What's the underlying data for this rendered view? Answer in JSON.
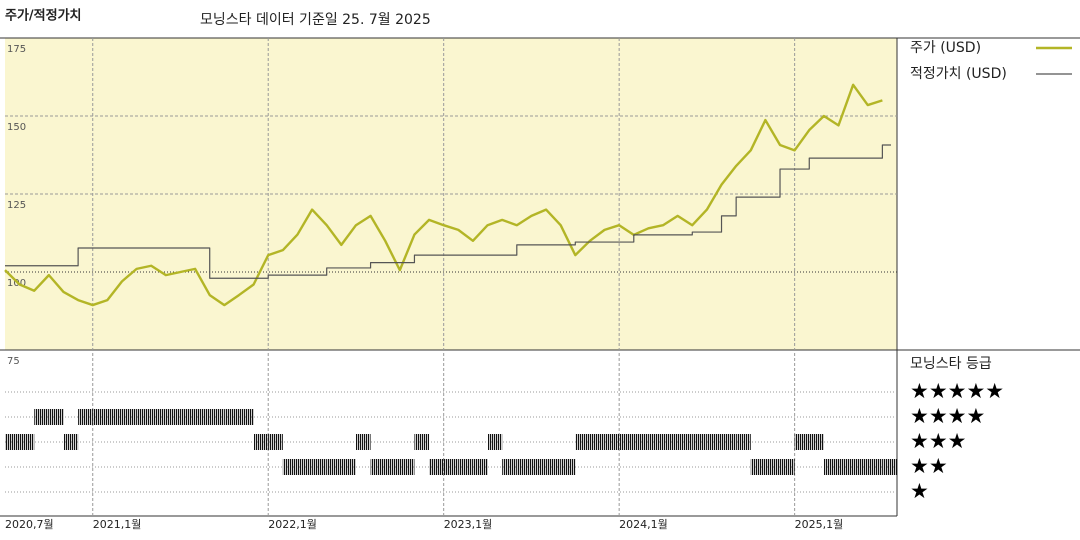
{
  "chart_data": {
    "type": "line",
    "title": "주가/적정가치",
    "subtitle": "모닝스타 데이터 기준일 25. 7월 2025",
    "x": [
      "2020-07",
      "2020-08",
      "2020-09",
      "2020-10",
      "2020-11",
      "2020-12",
      "2021-01",
      "2021-02",
      "2021-03",
      "2021-04",
      "2021-05",
      "2021-06",
      "2021-07",
      "2021-08",
      "2021-09",
      "2021-10",
      "2021-11",
      "2021-12",
      "2022-01",
      "2022-02",
      "2022-03",
      "2022-04",
      "2022-05",
      "2022-06",
      "2022-07",
      "2022-08",
      "2022-09",
      "2022-10",
      "2022-11",
      "2022-12",
      "2023-01",
      "2023-02",
      "2023-03",
      "2023-04",
      "2023-05",
      "2023-06",
      "2023-07",
      "2023-08",
      "2023-09",
      "2023-10",
      "2023-11",
      "2023-12",
      "2024-01",
      "2024-02",
      "2024-03",
      "2024-04",
      "2024-05",
      "2024-06",
      "2024-07",
      "2024-08",
      "2024-09",
      "2024-10",
      "2024-11",
      "2024-12",
      "2025-01",
      "2025-02",
      "2025-03",
      "2025-04",
      "2025-05",
      "2025-06",
      "2025-07"
    ],
    "series": [
      {
        "name": "주가 (USD)",
        "color": "#b3b526",
        "values": [
          100.6,
          96,
          94,
          99,
          93.6,
          91,
          89.4,
          91,
          97,
          101,
          102,
          99,
          100,
          101,
          92.6,
          89.4,
          92.6,
          96,
          105.4,
          107,
          112,
          120,
          115,
          108.7,
          115,
          118,
          110,
          100.6,
          112,
          116.7,
          115,
          113.5,
          110,
          115,
          116.7,
          115,
          118,
          120,
          115,
          105.4,
          110,
          113.5,
          115,
          111.9,
          114,
          115,
          118,
          115,
          120,
          128,
          134,
          139,
          148.7,
          140.7,
          139,
          145.5,
          150,
          147,
          160,
          153.5,
          155
        ]
      },
      {
        "name": "적정가치 (USD)",
        "color": "#555555",
        "step": true,
        "values": [
          102,
          102,
          102,
          102,
          102,
          107.7,
          107.7,
          107.7,
          107.7,
          107.7,
          107.7,
          107.7,
          107.7,
          107.7,
          98,
          98,
          98,
          98,
          99,
          99,
          99,
          99,
          101.3,
          101.3,
          101.3,
          103,
          103,
          103,
          105.4,
          105.4,
          105.4,
          105.4,
          105.4,
          105.4,
          105.4,
          108.7,
          108.7,
          108.7,
          108.7,
          109.6,
          109.6,
          109.6,
          109.6,
          111.9,
          111.9,
          111.9,
          111.9,
          112.8,
          112.8,
          118,
          124,
          124,
          124,
          133,
          133,
          136.5,
          136.5,
          136.5,
          136.5,
          136.5,
          140.7
        ]
      }
    ],
    "ylim": [
      75,
      175
    ],
    "yticks": [
      75,
      100,
      125,
      150,
      175
    ],
    "reference_line": 100,
    "grid": true,
    "xticks": [
      {
        "value": "2020-07",
        "label": "2020,7월"
      },
      {
        "value": "2021-01",
        "label": "2021,1월"
      },
      {
        "value": "2022-01",
        "label": "2022,1월"
      },
      {
        "value": "2023-01",
        "label": "2023,1월"
      },
      {
        "value": "2024-01",
        "label": "2024,1월"
      },
      {
        "value": "2025-01",
        "label": "2025,1월"
      }
    ],
    "rating": {
      "title": "모닝스타 등급",
      "levels": [
        {
          "value": 5,
          "label": "★★★★★"
        },
        {
          "value": 4,
          "label": "★★★★"
        },
        {
          "value": 3,
          "label": "★★★"
        },
        {
          "value": 2,
          "label": "★★"
        },
        {
          "value": 1,
          "label": "★"
        }
      ],
      "values": [
        3,
        3,
        4,
        4,
        3,
        4,
        4,
        4,
        4,
        4,
        4,
        4,
        4,
        4,
        4,
        4,
        4,
        3,
        3,
        2,
        2,
        2,
        2,
        2,
        3,
        2,
        2,
        2,
        3,
        2,
        2,
        2,
        2,
        3,
        2,
        2,
        2,
        2,
        2,
        3,
        3,
        3,
        3,
        3,
        3,
        3,
        3,
        3,
        3,
        3,
        3,
        2,
        2,
        2,
        3,
        3,
        2,
        2,
        2,
        2,
        2
      ]
    }
  }
}
